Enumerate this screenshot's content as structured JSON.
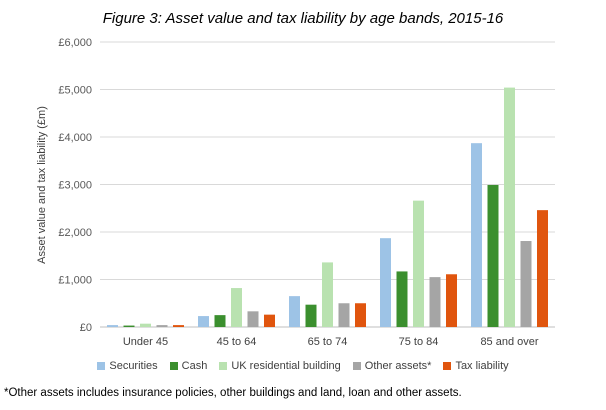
{
  "chart_data": {
    "type": "bar",
    "title": "Figure 3: Asset value and tax liability by age bands, 2015-16",
    "xlabel": "",
    "ylabel": "Asset value and tax liability (£m)",
    "ylim": [
      0,
      6000
    ],
    "yticks": [
      0,
      1000,
      2000,
      3000,
      4000,
      5000,
      6000
    ],
    "ytick_labels": [
      "£0",
      "£1,000",
      "£2,000",
      "£3,000",
      "£4,000",
      "£5,000",
      "£6,000"
    ],
    "grid": true,
    "legend_position": "bottom",
    "categories": [
      "Under 45",
      "45 to 64",
      "65 to 74",
      "75 to 84",
      "85 and over"
    ],
    "series": [
      {
        "name": "Securities",
        "color": "#9DC3E6",
        "values": [
          40,
          230,
          650,
          1870,
          3870
        ]
      },
      {
        "name": "Cash",
        "color": "#3B8F2E",
        "values": [
          30,
          250,
          470,
          1170,
          2990
        ]
      },
      {
        "name": "UK residential building",
        "color": "#B9E2B0",
        "values": [
          70,
          820,
          1360,
          2660,
          5040
        ]
      },
      {
        "name": "Other assets*",
        "color": "#A5A5A5",
        "values": [
          40,
          330,
          500,
          1050,
          1810
        ]
      },
      {
        "name": "Tax liability",
        "color": "#E0550E",
        "values": [
          40,
          260,
          500,
          1110,
          2460
        ]
      }
    ]
  },
  "footnote": "*Other assets includes insurance policies, other buildings and land, loan and other assets."
}
